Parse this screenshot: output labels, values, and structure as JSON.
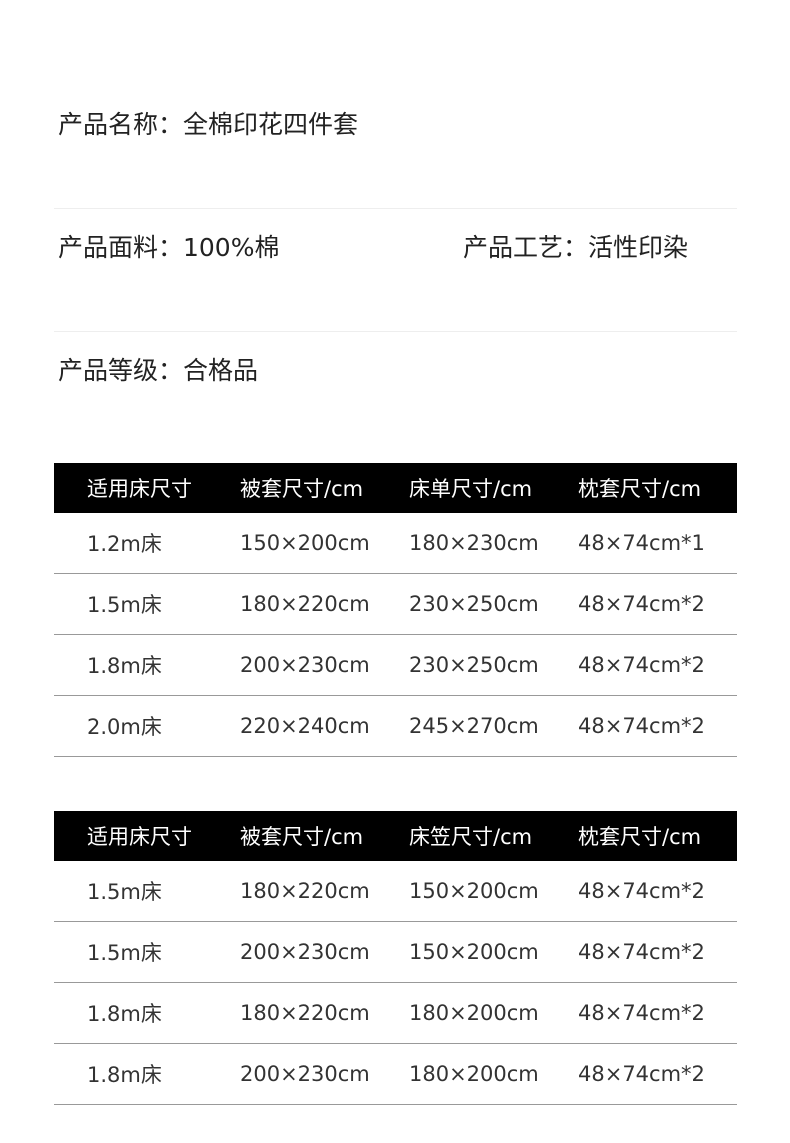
{
  "info": {
    "name": "产品名称：全棉印花四件套",
    "fabric": "产品面料：100%棉",
    "craft": "产品工艺：活性印染",
    "grade": "产品等级：合格品"
  },
  "table1": {
    "headers": [
      "适用床尺寸",
      "被套尺寸/cm",
      "床单尺寸/cm",
      "枕套尺寸/cm"
    ],
    "rows": [
      [
        "1.2m床",
        "150×200cm",
        "180×230cm",
        "48×74cm*1"
      ],
      [
        "1.5m床",
        "180×220cm",
        "230×250cm",
        "48×74cm*2"
      ],
      [
        "1.8m床",
        "200×230cm",
        "230×250cm",
        "48×74cm*2"
      ],
      [
        "2.0m床",
        "220×240cm",
        "245×270cm",
        "48×74cm*2"
      ]
    ]
  },
  "table2": {
    "headers": [
      "适用床尺寸",
      "被套尺寸/cm",
      "床笠尺寸/cm",
      "枕套尺寸/cm"
    ],
    "rows": [
      [
        "1.5m床",
        "180×220cm",
        "150×200cm",
        "48×74cm*2"
      ],
      [
        "1.5m床",
        "200×230cm",
        "150×200cm",
        "48×74cm*2"
      ],
      [
        "1.8m床",
        "180×220cm",
        "180×200cm",
        "48×74cm*2"
      ],
      [
        "1.8m床",
        "200×230cm",
        "180×200cm",
        "48×74cm*2"
      ]
    ]
  }
}
